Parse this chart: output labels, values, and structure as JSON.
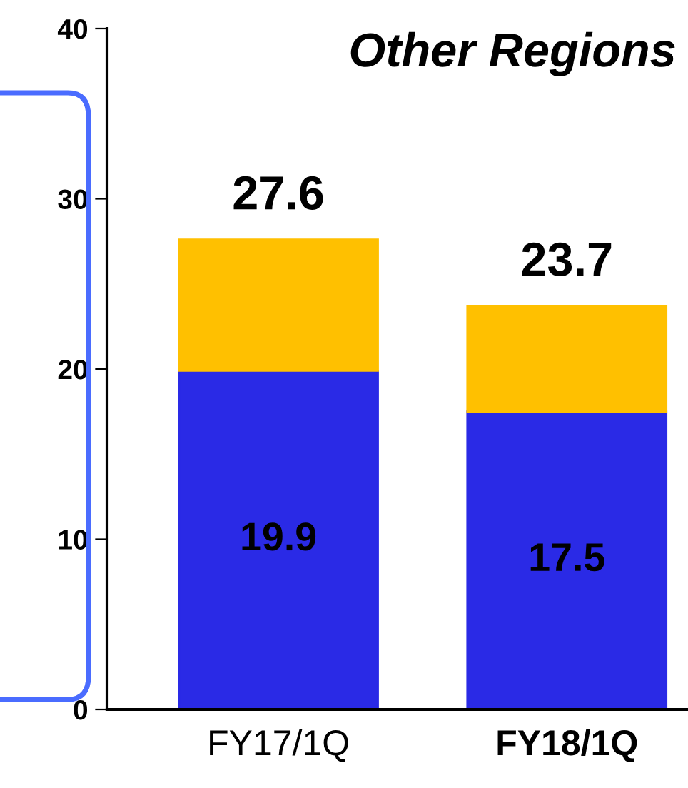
{
  "chart_data": {
    "type": "bar",
    "title": "Other Regions",
    "categories": [
      "FY17/1Q",
      "FY18/1Q"
    ],
    "stacked": true,
    "series": [
      {
        "color": "#2a2ae6",
        "values": [
          19.9,
          17.5
        ],
        "value_labels": [
          "19.9",
          "17.5"
        ]
      },
      {
        "color": "#ffc000",
        "values": [
          7.7,
          6.2
        ]
      }
    ],
    "totals": [
      "27.6",
      "23.7"
    ],
    "ylim": [
      0,
      40
    ],
    "yticks": [
      0,
      10,
      20,
      30,
      40
    ],
    "grid": false,
    "legend": false
  }
}
